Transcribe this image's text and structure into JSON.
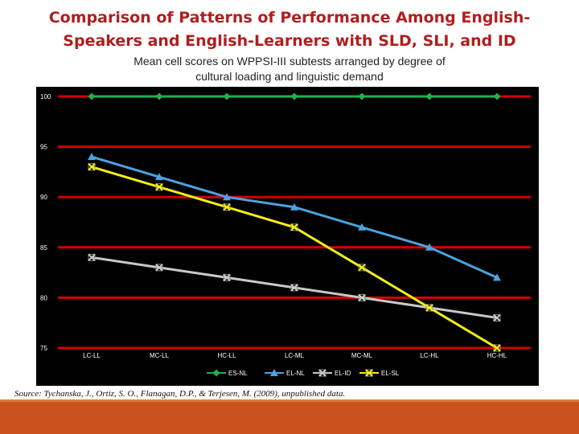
{
  "slide": {
    "title_line1": "Comparison of Patterns of Performance Among English-",
    "title_line2": "Speakers and English-Learners with SLD, SLI, and ID",
    "subtitle_line1": "Mean cell scores on WPPSI-III subtests arranged by degree of",
    "subtitle_line2": "cultural loading and linguistic demand",
    "source": "Source: Tychanska, J., Ortiz, S. O., Flanagan, D.P., & Terjesen, M. (2009), unpublished data."
  },
  "colors": {
    "title": "#b01e1e",
    "gridline": "#d40000",
    "chart_background": "#000000",
    "footer": "#c9521f"
  },
  "chart_data": {
    "type": "line",
    "categories": [
      "LC-LL",
      "MC-LL",
      "HC-LL",
      "LC-ML",
      "MC-ML",
      "LC-HL",
      "HC-HL"
    ],
    "series": [
      {
        "name": "ES-NL",
        "color": "#22b14c",
        "marker": "diamond",
        "values": [
          100,
          100,
          100,
          100,
          100,
          100,
          100
        ]
      },
      {
        "name": "EL-NL",
        "color": "#4aa3df",
        "marker": "triangle",
        "values": [
          94,
          92,
          90,
          89,
          87,
          85,
          82
        ]
      },
      {
        "name": "EL-ID",
        "color": "#c8c8c8",
        "marker": "x",
        "values": [
          84,
          83,
          82,
          81,
          80,
          79,
          78
        ]
      },
      {
        "name": "EL-SL",
        "color": "#f2ee1a",
        "marker": "x",
        "values": [
          93,
          91,
          89,
          87,
          83,
          79,
          75
        ]
      }
    ],
    "yticks": [
      100,
      95,
      90,
      85,
      80,
      75
    ],
    "ylim": [
      75,
      100
    ],
    "grid": true,
    "legend": "bottom"
  }
}
